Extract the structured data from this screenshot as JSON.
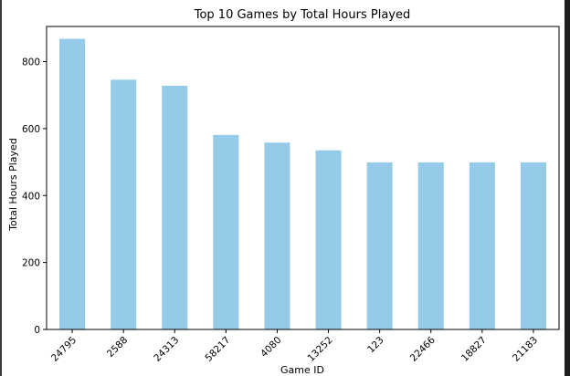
{
  "chart_data": {
    "type": "bar",
    "title": "Top 10 Games by Total Hours Played",
    "xlabel": "Game ID",
    "ylabel": "Total Hours Played",
    "categories": [
      "24795",
      "2588",
      "24313",
      "58217",
      "4080",
      "13252",
      "123",
      "22466",
      "18827",
      "21183"
    ],
    "values": [
      868,
      746,
      728,
      581,
      558,
      535,
      499,
      499,
      499,
      499
    ],
    "ylim": [
      0,
      905
    ],
    "yticks": [
      0,
      200,
      400,
      600,
      800
    ],
    "grid": false,
    "legend": "none",
    "bar_color": "#95cbe8",
    "x_tick_rotation": -45
  }
}
